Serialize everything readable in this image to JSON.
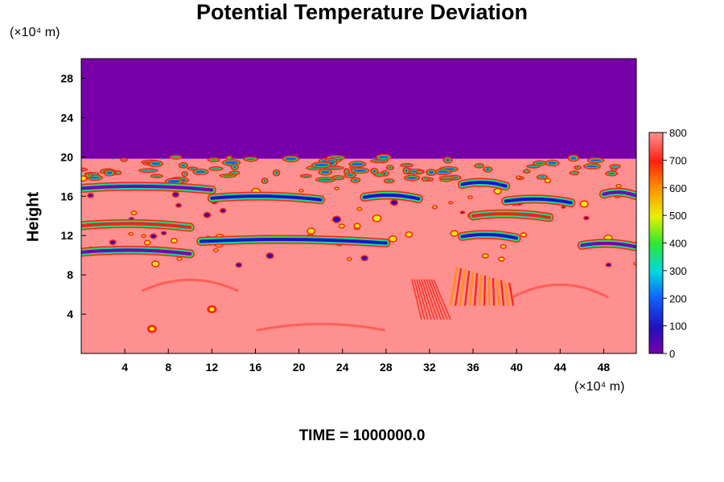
{
  "chart_data": {
    "type": "heatmap",
    "title": "Potential Temperature Deviation",
    "ylabel": "Height",
    "y_unit": "(×10⁴ m)",
    "x_unit": "(×10⁴ m)",
    "footer": "TIME = 1000000.0",
    "x_ticks": [
      "4",
      "8",
      "12",
      "16",
      "20",
      "24",
      "28",
      "32",
      "36",
      "40",
      "44",
      "48"
    ],
    "y_ticks": [
      "4",
      "8",
      "12",
      "16",
      "20",
      "24",
      "28"
    ],
    "xlim": [
      0,
      51
    ],
    "ylim": [
      0,
      30
    ],
    "colorbar": {
      "ticks": [
        "0",
        "100",
        "200",
        "300",
        "400",
        "500",
        "600",
        "700",
        "800"
      ],
      "range": [
        0,
        800
      ]
    },
    "bands": [
      {
        "name": "upper-uniform",
        "y_from": 19.8,
        "y_to": 30,
        "value": 0
      },
      {
        "name": "lower-uniform",
        "y_from": 0,
        "y_to": 19.8,
        "value": 800
      }
    ],
    "streaks": [
      {
        "x_from": 0,
        "x_to": 12,
        "y": 16.8,
        "value": 0
      },
      {
        "x_from": 12,
        "x_to": 22,
        "y": 15.8,
        "value": 100
      },
      {
        "x_from": 26,
        "x_to": 31,
        "y": 15.9,
        "value": 50
      },
      {
        "x_from": 35,
        "x_to": 39,
        "y": 17.2,
        "value": 50
      },
      {
        "x_from": 39,
        "x_to": 45,
        "y": 15.5,
        "value": 100
      },
      {
        "x_from": 48,
        "x_to": 51,
        "y": 16.2,
        "value": 0
      },
      {
        "x_from": 0,
        "x_to": 10,
        "y": 10.3,
        "value": 0
      },
      {
        "x_from": 11,
        "x_to": 28,
        "y": 11.4,
        "value": 50
      },
      {
        "x_from": 35,
        "x_to": 40,
        "y": 11.9,
        "value": 100
      },
      {
        "x_from": 46,
        "x_to": 51,
        "y": 11.0,
        "value": 0
      },
      {
        "x_from": 0,
        "x_to": 10,
        "y": 13.0,
        "value": 700
      },
      {
        "x_from": 36,
        "x_to": 43,
        "y": 14.0,
        "value": 700
      }
    ],
    "features": [
      {
        "x": 36,
        "y": 6.5,
        "value": 700
      },
      {
        "x": 32,
        "y": 5.5,
        "value": 650
      },
      {
        "x": 12,
        "y": 4.5,
        "value": 700
      },
      {
        "x": 6.5,
        "y": 2.5,
        "value": 750
      }
    ]
  }
}
